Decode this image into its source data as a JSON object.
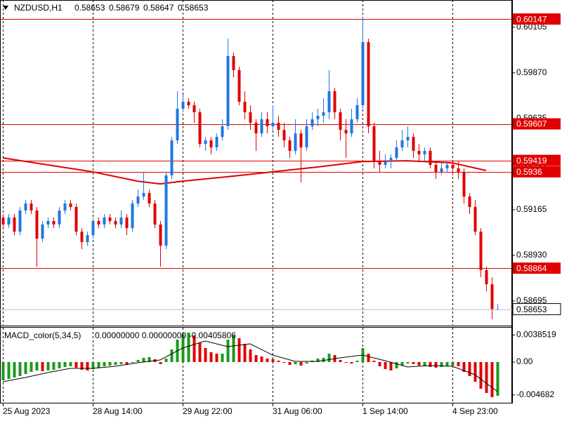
{
  "chart_data": [
    {
      "type": "candlestick",
      "title": "NZDUSD,H1",
      "open": [
        0.59125,
        0.59089,
        0.59125,
        0.59052,
        0.59161,
        0.59197,
        0.59161,
        0.59016,
        0.59089,
        0.59107,
        0.59089,
        0.59161,
        0.59197,
        0.59179,
        0.59052,
        0.58998,
        0.59034,
        0.59107,
        0.59089,
        0.59125,
        0.59107,
        0.59089,
        0.59125,
        0.5907,
        0.59197,
        0.59233,
        0.59251,
        0.59197,
        0.59089,
        0.5898,
        0.59342,
        0.59522,
        0.59685,
        0.59721,
        0.59703,
        0.59667,
        0.59504,
        0.59522,
        0.59486,
        0.5954,
        0.59595,
        0.59956,
        0.59884,
        0.59721,
        0.59667,
        0.59613,
        0.59558,
        0.59631,
        0.59595,
        0.59613,
        0.59576,
        0.59522,
        0.59468,
        0.59558,
        0.59486,
        0.59595,
        0.59631,
        0.59649,
        0.59667,
        0.59775,
        0.59667,
        0.59576,
        0.59558,
        0.59631,
        0.59703,
        0.60028,
        0.59595,
        0.59413,
        0.59396,
        0.59413,
        0.59432,
        0.59486,
        0.59522,
        0.5954,
        0.59468,
        0.5945,
        0.59468,
        0.59396,
        0.5936,
        0.59378,
        0.59396,
        0.59378,
        0.5936,
        0.59233,
        0.59179,
        0.59052,
        0.58854,
        0.58781,
        0.58653
      ],
      "high": [
        0.59143,
        0.59143,
        0.59143,
        0.59179,
        0.59215,
        0.59215,
        0.59179,
        0.59107,
        0.59125,
        0.59125,
        0.59179,
        0.59215,
        0.59215,
        0.59197,
        0.5907,
        0.59052,
        0.59125,
        0.59125,
        0.59143,
        0.59143,
        0.59125,
        0.59161,
        0.59143,
        0.59215,
        0.59269,
        0.5936,
        0.59269,
        0.59215,
        0.59107,
        0.5936,
        0.5954,
        0.59775,
        0.59757,
        0.59739,
        0.59721,
        0.59685,
        0.5954,
        0.5954,
        0.59558,
        0.59631,
        0.60046,
        0.59974,
        0.59902,
        0.59775,
        0.59703,
        0.59631,
        0.59667,
        0.59667,
        0.59703,
        0.59649,
        0.59613,
        0.5954,
        0.59631,
        0.59576,
        0.59631,
        0.59667,
        0.59685,
        0.59739,
        0.59884,
        0.59793,
        0.59685,
        0.59631,
        0.59685,
        0.59739,
        0.60155,
        0.60046,
        0.59613,
        0.59468,
        0.5945,
        0.5945,
        0.59522,
        0.59576,
        0.59595,
        0.59558,
        0.59504,
        0.59486,
        0.59486,
        0.59413,
        0.59413,
        0.59413,
        0.59413,
        0.59413,
        0.59378,
        0.59251,
        0.59215,
        0.5907,
        0.58872,
        0.58818,
        0.58679
      ],
      "low": [
        0.5907,
        0.5907,
        0.59034,
        0.59034,
        0.59143,
        0.59143,
        0.58872,
        0.58998,
        0.5907,
        0.5907,
        0.5907,
        0.59143,
        0.59161,
        0.59034,
        0.58962,
        0.5898,
        0.59016,
        0.5907,
        0.5907,
        0.59089,
        0.5907,
        0.5907,
        0.59034,
        0.59052,
        0.59179,
        0.59215,
        0.59179,
        0.5907,
        0.58872,
        0.58962,
        0.59323,
        0.59504,
        0.59667,
        0.59685,
        0.59613,
        0.59486,
        0.59468,
        0.5945,
        0.59468,
        0.59522,
        0.59576,
        0.59847,
        0.59703,
        0.59631,
        0.59576,
        0.59468,
        0.5954,
        0.59558,
        0.59576,
        0.5954,
        0.59486,
        0.59432,
        0.5945,
        0.59305,
        0.59468,
        0.59576,
        0.59595,
        0.59613,
        0.59631,
        0.59631,
        0.59522,
        0.59432,
        0.5954,
        0.59613,
        0.59685,
        0.59558,
        0.59378,
        0.5936,
        0.59378,
        0.59378,
        0.59413,
        0.59468,
        0.59486,
        0.59432,
        0.59413,
        0.59413,
        0.59378,
        0.59323,
        0.59342,
        0.5936,
        0.59342,
        0.59323,
        0.59197,
        0.59143,
        0.59034,
        0.58818,
        0.58745,
        0.58601,
        0.58647
      ],
      "close": [
        0.59089,
        0.59125,
        0.59052,
        0.59161,
        0.59197,
        0.59161,
        0.59016,
        0.59089,
        0.59107,
        0.59089,
        0.59161,
        0.59197,
        0.59179,
        0.59052,
        0.58998,
        0.59034,
        0.59107,
        0.59089,
        0.59125,
        0.59107,
        0.59089,
        0.59125,
        0.5907,
        0.59197,
        0.59233,
        0.59251,
        0.59197,
        0.59089,
        0.5898,
        0.59342,
        0.59522,
        0.59685,
        0.59721,
        0.59703,
        0.59667,
        0.59504,
        0.59522,
        0.59486,
        0.5954,
        0.59595,
        0.59956,
        0.59884,
        0.59721,
        0.59667,
        0.59613,
        0.59558,
        0.59631,
        0.59595,
        0.59613,
        0.59576,
        0.59522,
        0.59468,
        0.59558,
        0.59486,
        0.59595,
        0.59631,
        0.59649,
        0.59667,
        0.59775,
        0.59667,
        0.59576,
        0.59558,
        0.59631,
        0.59703,
        0.60028,
        0.59595,
        0.59413,
        0.59396,
        0.59413,
        0.59432,
        0.59486,
        0.59522,
        0.5954,
        0.59468,
        0.5945,
        0.59468,
        0.59396,
        0.5936,
        0.59378,
        0.59396,
        0.59378,
        0.5936,
        0.59233,
        0.59179,
        0.59052,
        0.58854,
        0.58781,
        0.58653,
        0.58653
      ],
      "up_color": "#1f77e0",
      "down_color": "#e00000",
      "ma": {
        "color": "#e00000",
        "x": [
          0,
          8,
          16,
          24,
          28,
          32,
          40,
          48,
          56,
          64,
          72,
          80,
          86
        ],
        "values": [
          0.59432,
          0.59396,
          0.5936,
          0.59312,
          0.59298,
          0.59312,
          0.59335,
          0.5936,
          0.59385,
          0.59413,
          0.59417,
          0.59406,
          0.59367
        ]
      },
      "levels": [
        0.60147,
        0.59607,
        0.59419,
        0.5936,
        0.58864
      ],
      "level_color": "#e00000",
      "ylim": [
        0.58572,
        0.60245
      ],
      "yticks": [
        {
          "value": 0.60105,
          "label": "0.60105"
        },
        {
          "value": 0.5987,
          "label": "0.59870"
        },
        {
          "value": 0.59635,
          "label": "0.59635"
        },
        {
          "value": 0.594,
          "label": "0.59400"
        },
        {
          "value": 0.59165,
          "label": "0.59165"
        },
        {
          "value": 0.5893,
          "label": "0.58930"
        },
        {
          "value": 0.58695,
          "label": "0.58695"
        }
      ],
      "xticks": [
        {
          "value": 0,
          "label": "25 Aug 2023"
        },
        {
          "value": 16,
          "label": "28 Aug 14:00"
        },
        {
          "value": 32,
          "label": "29 Aug 22:00"
        },
        {
          "value": 48,
          "label": "31 Aug 06:00"
        },
        {
          "value": 64,
          "label": "1 Sep 14:00"
        },
        {
          "value": 80,
          "label": "4 Sep 23:00"
        }
      ],
      "grid": true
    },
    {
      "type": "macd",
      "title": "MACD_color(5,34,5)",
      "readout": "0.00000000 0.00000000 -0.00405806",
      "values": [
        -0.0026,
        -0.0024,
        -0.0022,
        -0.002,
        -0.0017,
        -0.0014,
        -0.0012,
        -0.0013,
        -0.0012,
        -0.0011,
        -0.0009,
        -0.0007,
        -0.0006,
        -0.0008,
        -0.0011,
        -0.0012,
        -0.001,
        -0.0008,
        -0.0006,
        -0.0005,
        -0.0004,
        -0.0003,
        -0.0004,
        -0.0001,
        0.0003,
        0.0006,
        0.0007,
        0.0004,
        -0.0003,
        0.0005,
        0.0018,
        0.0032,
        0.004,
        0.0042,
        0.0038,
        0.0028,
        0.002,
        0.0014,
        0.0012,
        0.0012,
        0.0032,
        0.0038,
        0.0034,
        0.0026,
        0.0018,
        0.001,
        0.0008,
        0.0005,
        0.0004,
        0.0002,
        -0.0001,
        -0.0004,
        -0.0003,
        -0.0005,
        -0.0002,
        0.0002,
        0.0005,
        0.0006,
        0.0012,
        0.001,
        0.0003,
        -0.0001,
        -0.0002,
        0.0002,
        0.002,
        0.0012,
        0.0002,
        -0.0006,
        -0.001,
        -0.0012,
        -0.0009,
        -0.0005,
        -0.0002,
        -0.0003,
        -0.0005,
        -0.0005,
        -0.0007,
        -0.0008,
        -0.0007,
        -0.0006,
        -0.0005,
        -0.0006,
        -0.0014,
        -0.002,
        -0.0028,
        -0.0038,
        -0.0044,
        -0.005,
        -0.0048
      ],
      "up_color": "#1a9a1a",
      "down_color": "#e00000",
      "signal": {
        "color": "#000000",
        "x": [
          0,
          4,
          8,
          12,
          16,
          20,
          24,
          28,
          32,
          36,
          40,
          44,
          48,
          52,
          56,
          60,
          64,
          68,
          72,
          76,
          80,
          84,
          88
        ],
        "values": [
          -0.0028,
          -0.0022,
          -0.0015,
          -0.0009,
          -0.0009,
          -0.0006,
          -0.0001,
          0.0003,
          0.002,
          0.003,
          0.0022,
          0.0026,
          0.001,
          0.0001,
          0.0001,
          0.0006,
          0.001,
          0.0002,
          -0.0007,
          -0.0005,
          -0.0006,
          -0.0018,
          -0.0042
        ]
      },
      "ylim": [
        -0.0059,
        0.005
      ],
      "yticks": [
        0.0038519,
        {
          "value": 0,
          "label": "0.00"
        },
        -0.004682
      ]
    }
  ]
}
